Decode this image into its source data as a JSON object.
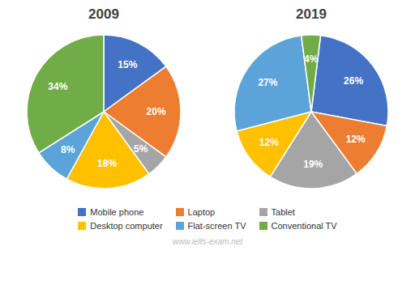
{
  "chart_data": [
    {
      "type": "pie",
      "title": "2009",
      "categories": [
        "Mobile phone",
        "Laptop",
        "Tablet",
        "Desktop computer",
        "Flat-screen TV",
        "Conventional TV"
      ],
      "values": [
        15,
        20,
        5,
        18,
        8,
        34
      ],
      "value_labels": [
        "15%",
        "20%",
        "5%",
        "18%",
        "8%",
        "34%"
      ],
      "colors": [
        "#4472C4",
        "#ED7D31",
        "#A5A5A5",
        "#FFC000",
        "#5BA3D9",
        "#70AD47"
      ],
      "data_labels": true,
      "legend": "bottom"
    },
    {
      "type": "pie",
      "title": "2019",
      "categories": [
        "Mobile phone",
        "Laptop",
        "Tablet",
        "Desktop computer",
        "Flat-screen TV",
        "Conventional TV"
      ],
      "values": [
        26,
        12,
        19,
        12,
        27,
        4
      ],
      "value_labels": [
        "26%",
        "12%",
        "19%",
        "12%",
        "27%",
        "4%"
      ],
      "colors": [
        "#4472C4",
        "#ED7D31",
        "#A5A5A5",
        "#FFC000",
        "#5BA3D9",
        "#70AD47"
      ],
      "data_labels": true,
      "legend": "bottom"
    }
  ],
  "annotations": [
    "www.ielts-exam.net"
  ]
}
